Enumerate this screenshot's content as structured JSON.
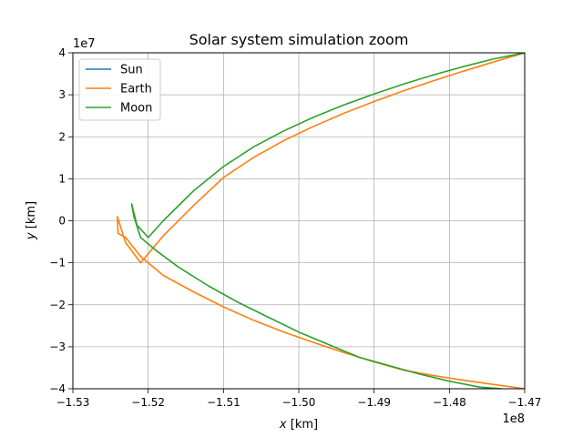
{
  "chart_data": {
    "type": "line",
    "title": "Solar system simulation zoom",
    "xlabel_var": "x",
    "xlabel_unit": " [km]",
    "ylabel_var": "y",
    "ylabel_unit": " [km]",
    "x_multiplier": "1e8",
    "y_multiplier": "1e7",
    "xlim": [
      -1.53,
      -1.47
    ],
    "ylim": [
      -4,
      4
    ],
    "x_ticks": [
      -1.53,
      -1.52,
      -1.51,
      -1.5,
      -1.49,
      -1.48,
      -1.47
    ],
    "x_tick_labels": [
      "−1.53",
      "−1.52",
      "−1.51",
      "−1.50",
      "−1.49",
      "−1.48",
      "−1.47"
    ],
    "y_ticks": [
      -4,
      -3,
      -2,
      -1,
      0,
      1,
      2,
      3,
      4
    ],
    "y_tick_labels": [
      "−4",
      "−3",
      "−2",
      "−1",
      "0",
      "1",
      "2",
      "3",
      "4"
    ],
    "grid": true,
    "legend_position": "top-left",
    "series": [
      {
        "name": "Sun",
        "color": "#1f77b4",
        "x": [],
        "y": []
      },
      {
        "name": "Earth",
        "color": "#ff7f0e",
        "x": [
          -1.47,
          -1.474,
          -1.478,
          -1.482,
          -1.486,
          -1.49,
          -1.494,
          -1.498,
          -1.502,
          -1.506,
          -1.51,
          -1.514,
          -1.518,
          -1.521,
          -1.523,
          -1.5241,
          -1.524,
          -1.523,
          -1.521,
          -1.518,
          -1.514,
          -1.51,
          -1.506,
          -1.502,
          -1.498,
          -1.494,
          -1.49,
          -1.486,
          -1.482,
          -1.478,
          -1.474,
          -1.47
        ],
        "y": [
          4.0,
          3.79,
          3.57,
          3.34,
          3.1,
          2.84,
          2.56,
          2.25,
          1.91,
          1.51,
          1.03,
          0.36,
          -0.36,
          -1.0,
          -0.52,
          0.1,
          -0.3,
          -0.4,
          -0.85,
          -1.3,
          -1.69,
          -2.05,
          -2.37,
          -2.65,
          -2.9,
          -3.14,
          -3.36,
          -3.56,
          -3.69,
          -3.8,
          -3.9,
          -4.0
        ]
      },
      {
        "name": "Moon",
        "color": "#2ca02c",
        "x": [
          -1.47,
          -1.474,
          -1.478,
          -1.482,
          -1.486,
          -1.49,
          -1.494,
          -1.498,
          -1.502,
          -1.506,
          -1.51,
          -1.514,
          -1.518,
          -1.52,
          -1.5215,
          -1.5222,
          -1.5219,
          -1.521,
          -1.519,
          -1.516,
          -1.512,
          -1.508,
          -1.504,
          -1.5,
          -1.496,
          -1.492,
          -1.488,
          -1.484,
          -1.48,
          -1.476,
          -1.473
        ],
        "y": [
          4.0,
          3.86,
          3.68,
          3.48,
          3.26,
          3.02,
          2.76,
          2.47,
          2.14,
          1.76,
          1.29,
          0.71,
          0.0,
          -0.4,
          -0.1,
          0.4,
          0.1,
          -0.4,
          -0.7,
          -1.1,
          -1.55,
          -1.95,
          -2.3,
          -2.65,
          -2.95,
          -3.25,
          -3.45,
          -3.65,
          -3.82,
          -3.96,
          -4.0
        ]
      }
    ]
  }
}
